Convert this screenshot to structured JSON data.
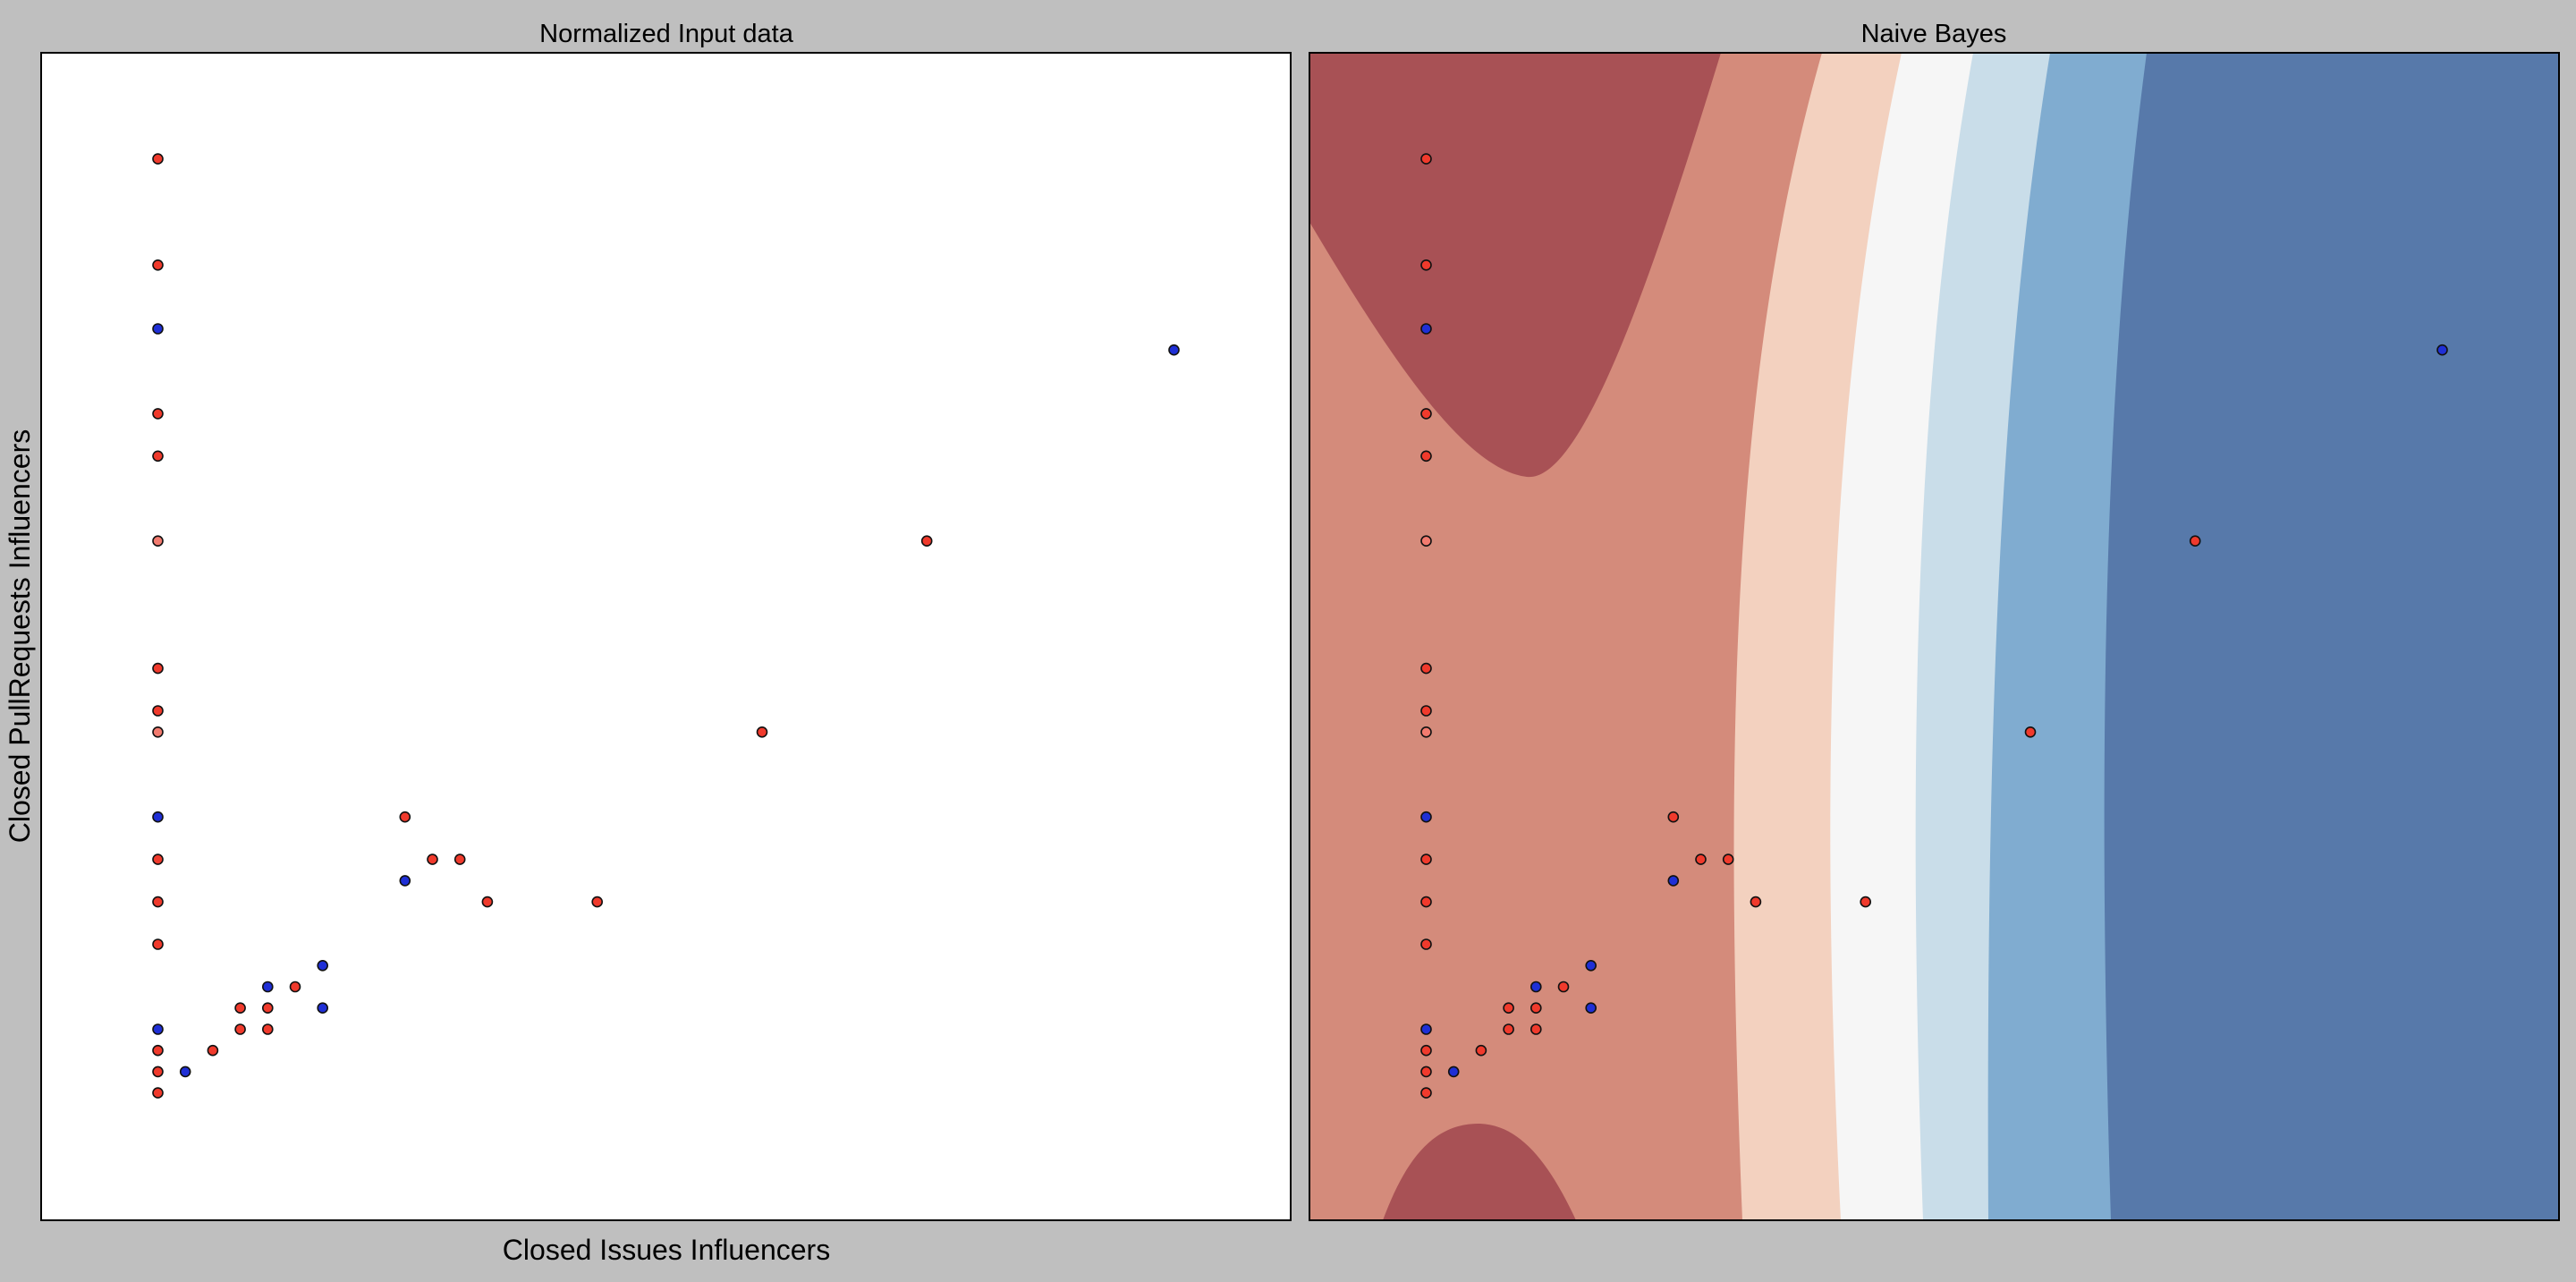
{
  "figure": {
    "background": "#bfbfbf",
    "xlabel": "Closed Issues Influencers",
    "ylabel": "Closed PullRequests Influencers"
  },
  "chart_data": [
    {
      "type": "scatter",
      "title": "Normalized Input data",
      "xlabel": "Closed Issues Influencers",
      "ylabel": "Closed PullRequests Influencers",
      "xlim": [
        -0.092,
        1.0
      ],
      "ylim": [
        -0.1,
        1.0
      ],
      "xticks": "none",
      "yticks": "none",
      "grid": false,
      "points": [
        {
          "x": 0.01,
          "y": 0.9,
          "class": "red"
        },
        {
          "x": 0.01,
          "y": 0.8,
          "class": "red"
        },
        {
          "x": 0.01,
          "y": 0.74,
          "class": "blue"
        },
        {
          "x": 0.01,
          "y": 0.66,
          "class": "red"
        },
        {
          "x": 0.01,
          "y": 0.62,
          "class": "red"
        },
        {
          "x": 0.01,
          "y": 0.54,
          "class": "red-light"
        },
        {
          "x": 0.01,
          "y": 0.42,
          "class": "red"
        },
        {
          "x": 0.01,
          "y": 0.38,
          "class": "red"
        },
        {
          "x": 0.01,
          "y": 0.36,
          "class": "red-light"
        },
        {
          "x": 0.01,
          "y": 0.28,
          "class": "blue"
        },
        {
          "x": 0.01,
          "y": 0.24,
          "class": "red"
        },
        {
          "x": 0.01,
          "y": 0.2,
          "class": "red"
        },
        {
          "x": 0.01,
          "y": 0.16,
          "class": "red"
        },
        {
          "x": 0.01,
          "y": 0.08,
          "class": "blue"
        },
        {
          "x": 0.01,
          "y": 0.06,
          "class": "red"
        },
        {
          "x": 0.01,
          "y": 0.04,
          "class": "red"
        },
        {
          "x": 0.01,
          "y": 0.02,
          "class": "red"
        },
        {
          "x": 0.034,
          "y": 0.04,
          "class": "blue"
        },
        {
          "x": 0.058,
          "y": 0.06,
          "class": "red"
        },
        {
          "x": 0.082,
          "y": 0.08,
          "class": "red"
        },
        {
          "x": 0.082,
          "y": 0.1,
          "class": "red"
        },
        {
          "x": 0.106,
          "y": 0.08,
          "class": "red"
        },
        {
          "x": 0.106,
          "y": 0.1,
          "class": "red"
        },
        {
          "x": 0.106,
          "y": 0.12,
          "class": "blue"
        },
        {
          "x": 0.13,
          "y": 0.12,
          "class": "red"
        },
        {
          "x": 0.154,
          "y": 0.1,
          "class": "blue"
        },
        {
          "x": 0.154,
          "y": 0.14,
          "class": "blue"
        },
        {
          "x": 0.226,
          "y": 0.22,
          "class": "blue"
        },
        {
          "x": 0.226,
          "y": 0.28,
          "class": "red"
        },
        {
          "x": 0.25,
          "y": 0.24,
          "class": "red"
        },
        {
          "x": 0.274,
          "y": 0.24,
          "class": "red"
        },
        {
          "x": 0.298,
          "y": 0.2,
          "class": "red"
        },
        {
          "x": 0.394,
          "y": 0.2,
          "class": "red"
        },
        {
          "x": 0.538,
          "y": 0.36,
          "class": "red"
        },
        {
          "x": 0.682,
          "y": 0.54,
          "class": "red"
        },
        {
          "x": 0.898,
          "y": 0.72,
          "class": "blue"
        }
      ]
    },
    {
      "type": "scatter",
      "title": "Naive Bayes",
      "xlim": [
        -0.092,
        1.0
      ],
      "ylim": [
        -0.1,
        1.0
      ],
      "xticks": "none",
      "yticks": "none",
      "grid": false,
      "decision_regions": "filled contour of class probability, red (left) to blue (right)",
      "points_same_as_panel": 0
    }
  ],
  "colors": {
    "red_point": "#f03a2c",
    "red_point_light": "#f27b6f",
    "blue_point": "#1f2fd6",
    "point_edge": "#111111",
    "region_dark_red": "#a85155",
    "region_red": "#d48b7b",
    "region_peach": "#f3d1bf",
    "region_white": "#f6f6f6",
    "region_light_blue": "#c9dde9",
    "region_mid_blue": "#80acd0",
    "region_dark_blue": "#5779aa"
  }
}
